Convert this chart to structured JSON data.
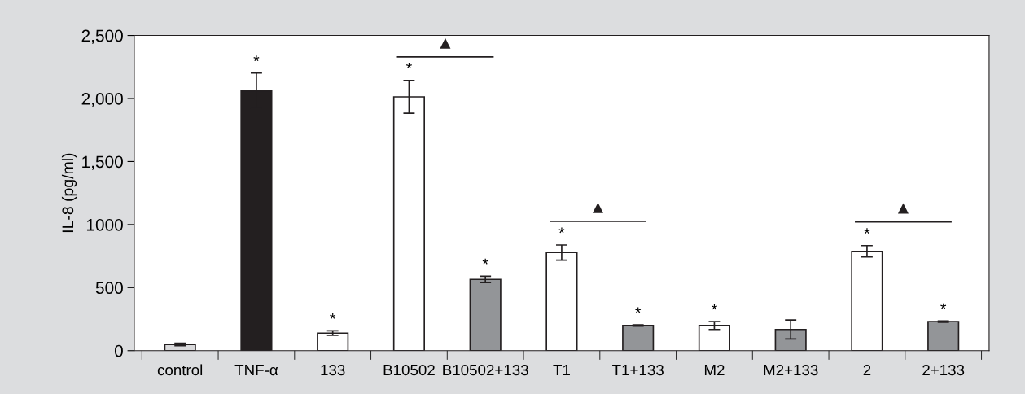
{
  "chart_data": {
    "type": "bar",
    "ylabel": "IL-8 (pg/ml)",
    "categories": [
      "control",
      "TNF-α",
      "133",
      "B10502",
      "B10502+133",
      "T1",
      "T1+133",
      "M2",
      "M2+133",
      "2",
      "2+133"
    ],
    "values": [
      49,
      2062,
      139,
      2013,
      565,
      778,
      199,
      199,
      168,
      788,
      230
    ],
    "errors": [
      10,
      140,
      18,
      130,
      25,
      60,
      5,
      31,
      75,
      45,
      5
    ],
    "colors": [
      "#d9d9db",
      "#231f20",
      "#ffffff",
      "#ffffff",
      "#939598",
      "#ffffff",
      "#939598",
      "#ffffff",
      "#939598",
      "#ffffff",
      "#939598"
    ],
    "ylim": [
      0,
      2500
    ],
    "yticks": [
      0,
      500,
      {
        "value": 1000,
        "label": "1000"
      },
      {
        "value": 1500,
        "label": "1,500"
      },
      {
        "value": 2000,
        "label": "2,000"
      },
      {
        "value": 2500,
        "label": "2,500"
      }
    ],
    "grid": false,
    "legend": false,
    "annotations": [
      {
        "text": "*",
        "x": "TNF-α",
        "y": 2201
      },
      {
        "text": "*",
        "x": "133",
        "y": 157
      },
      {
        "text": "*",
        "x": "B10502",
        "y": 2143
      },
      {
        "text": "*",
        "x": "B10502+133",
        "y": 590
      },
      {
        "text": "*",
        "x": "T1",
        "y": 837
      },
      {
        "text": "*",
        "x": "T1+133",
        "y": 204
      },
      {
        "text": "*",
        "x": "M2",
        "y": 230
      },
      {
        "text": "*",
        "x": "2",
        "y": 833
      },
      {
        "text": "*",
        "x": "2+133",
        "y": 235
      },
      "▲",
      "▲",
      "▲"
    ]
  }
}
